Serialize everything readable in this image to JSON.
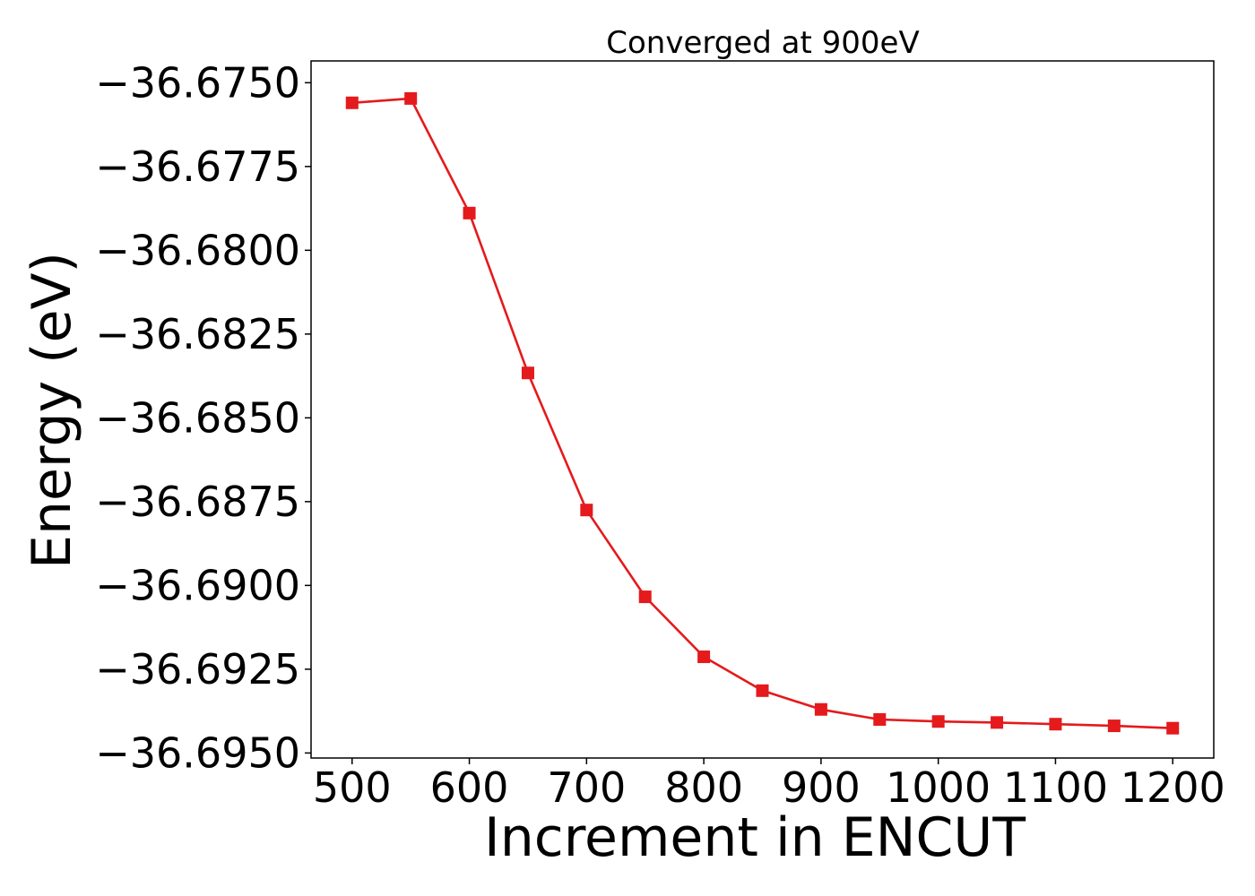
{
  "chart_data": {
    "type": "line",
    "title": "Converged at 900eV",
    "xlabel": "Increment in ENCUT",
    "ylabel": "Energy (eV)",
    "xlim": [
      465,
      1235
    ],
    "ylim": [
      -36.69515,
      -36.67435
    ],
    "xticks": [
      500,
      600,
      700,
      800,
      900,
      1000,
      1100,
      1200
    ],
    "xtick_labels": [
      "500",
      "600",
      "700",
      "800",
      "900",
      "1000",
      "1100",
      "1200"
    ],
    "yticks": [
      -36.675,
      -36.6775,
      -36.68,
      -36.6825,
      -36.685,
      -36.6875,
      -36.69,
      -36.6925,
      -36.695
    ],
    "ytick_labels": [
      "−36.6750",
      "−36.6775",
      "−36.6800",
      "−36.6825",
      "−36.6850",
      "−36.6875",
      "−36.6900",
      "−36.6925",
      "−36.6950"
    ],
    "grid": false,
    "series": [
      {
        "color": "#e41a1c",
        "marker": "square",
        "x": [
          500,
          550,
          600,
          650,
          700,
          750,
          800,
          850,
          900,
          950,
          1000,
          1050,
          1100,
          1150,
          1200
        ],
        "y": [
          -36.6756,
          -36.67547,
          -36.67889,
          -36.68366,
          -36.68775,
          -36.69034,
          -36.69213,
          -36.69314,
          -36.6937,
          -36.694,
          -36.69406,
          -36.69409,
          -36.69414,
          -36.69419,
          -36.69426
        ]
      }
    ]
  }
}
